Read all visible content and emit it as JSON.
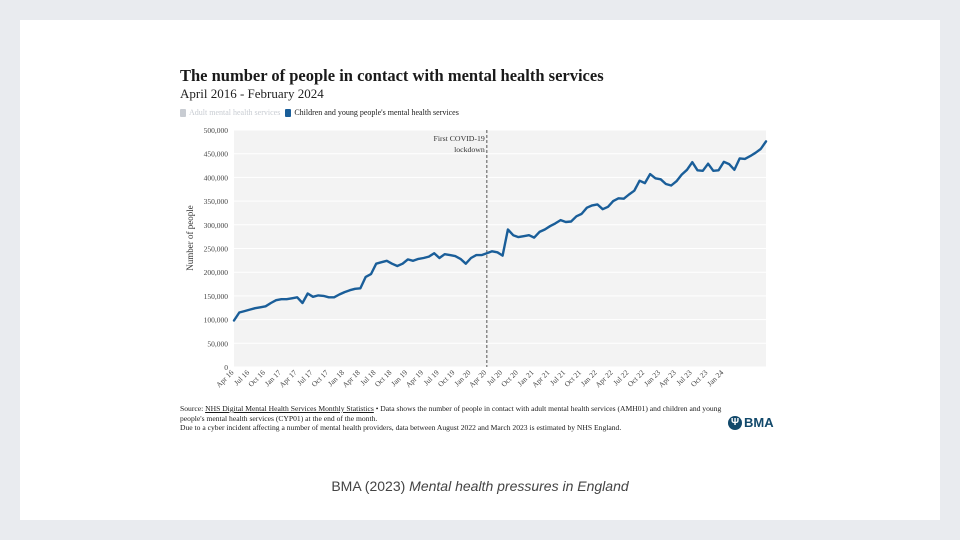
{
  "slide": {
    "caption_prefix": "BMA (2023) ",
    "caption_italic": "Mental health pressures in England"
  },
  "chart_data": {
    "type": "line",
    "title": "The number of people in contact with mental health services",
    "subtitle": "April 2016 - February 2024",
    "ylabel": "Number of people",
    "xlabel": "",
    "ylim": [
      0,
      500000
    ],
    "yticks": [
      0,
      50000,
      100000,
      150000,
      200000,
      250000,
      300000,
      350000,
      400000,
      450000,
      500000
    ],
    "ytick_labels": [
      "0",
      "50,000",
      "100,000",
      "150,000",
      "200,000",
      "250,000",
      "300,000",
      "350,000",
      "400,000",
      "450,000",
      "500,000"
    ],
    "xtick_labels": [
      "Apr 16",
      "Jul 16",
      "Oct 16",
      "Jan 17",
      "Apr 17",
      "Jul 17",
      "Oct 17",
      "Jan 18",
      "Apr 18",
      "Jul 18",
      "Oct 18",
      "Jan 19",
      "Apr 19",
      "Jul 19",
      "Oct 19",
      "Jan 20",
      "Apr 20",
      "Jul 20",
      "Oct 20",
      "Jan 21",
      "Apr 21",
      "Jul 21",
      "Oct 21",
      "Jan 22",
      "Apr 22",
      "Jul 22",
      "Oct 22",
      "Jan 23",
      "Apr 23",
      "Jul 23",
      "Oct 23",
      "Jan 24"
    ],
    "grid": true,
    "legend": [
      {
        "name": "Adult mental health services",
        "color": "#c8ccd2",
        "hidden": true
      },
      {
        "name": "Children and young people's mental health services",
        "color": "#1a5e99",
        "hidden": false
      }
    ],
    "annotation": {
      "lines": [
        "First COVID-19",
        "lockdown"
      ],
      "at_month_index": 48
    },
    "series": [
      {
        "name": "Children and young people's mental health services",
        "color": "#1a5e99",
        "start": "Apr 16",
        "values": [
          98000,
          115000,
          118000,
          121000,
          124000,
          126000,
          128000,
          135000,
          141000,
          143000,
          143000,
          145000,
          147000,
          135000,
          155000,
          148000,
          151000,
          150000,
          147000,
          147000,
          153000,
          158000,
          162000,
          165000,
          166000,
          190000,
          196000,
          218000,
          221000,
          224000,
          218000,
          213000,
          218000,
          227000,
          224000,
          228000,
          230000,
          233000,
          240000,
          230000,
          238000,
          236000,
          234000,
          228000,
          218000,
          230000,
          236000,
          236000,
          240000,
          244000,
          242000,
          235000,
          290000,
          278000,
          274000,
          276000,
          278000,
          273000,
          285000,
          290000,
          297000,
          303000,
          310000,
          306000,
          307000,
          318000,
          323000,
          336000,
          341000,
          343000,
          333000,
          338000,
          350000,
          356000,
          355000,
          364000,
          372000,
          393000,
          388000,
          407000,
          398000,
          396000,
          386000,
          383000,
          392000,
          406000,
          416000,
          432000,
          415000,
          414000,
          429000,
          414000,
          415000,
          433000,
          428000,
          416000,
          440000,
          439000,
          445000,
          452000,
          460000,
          476000
        ]
      }
    ]
  },
  "source": {
    "label": "Source: ",
    "link_text": "NHS Digital Mental Health Services Monthly Statistics",
    "text": " • Data shows the number of people in contact with adult mental health services (AMH01) and children and young people's mental health services (CYP01) at the end of the month.",
    "note": "Due to a cyber incident affecting a number of mental health providers, data between August 2022 and March 2023 is estimated by NHS England."
  },
  "logo": {
    "mark": "Ψ",
    "text": "BMA"
  },
  "colors": {
    "series": "#1a5e99",
    "plot_bg": "#f3f3f3",
    "grid": "#ffffff",
    "brand": "#12496b"
  }
}
